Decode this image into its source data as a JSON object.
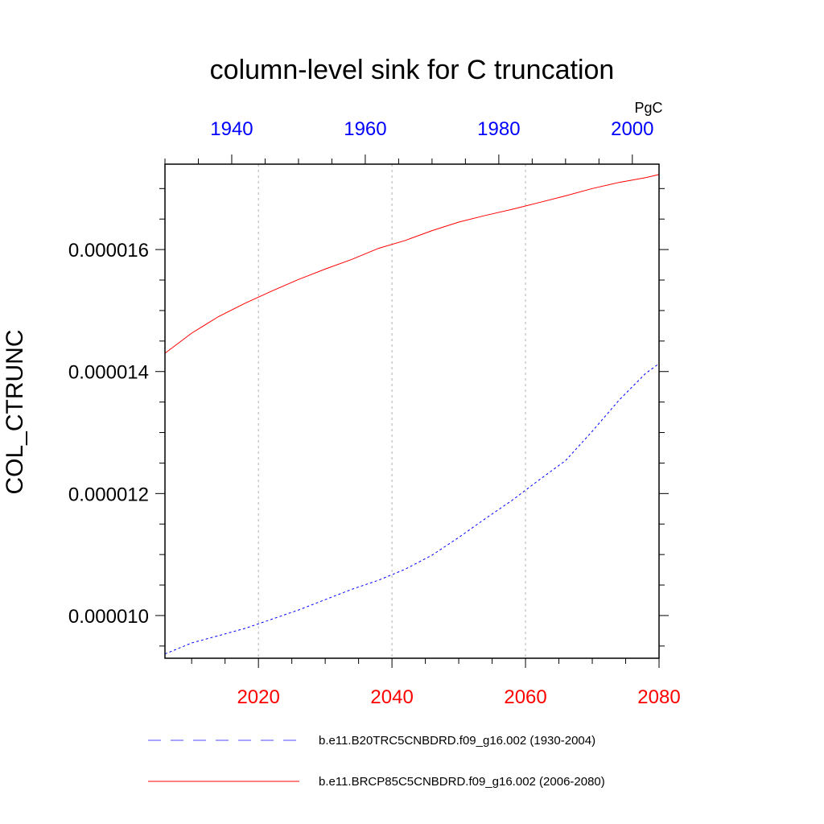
{
  "chart_data": {
    "type": "line",
    "title": "column-level sink for C truncation",
    "ylabel": "COL_CTRUNC",
    "units": "PgC",
    "ylim": [
      9.3e-06,
      1.74e-05
    ],
    "yticks": [
      "0.000010",
      "0.000012",
      "0.000014",
      "0.000016"
    ],
    "ytick_values": [
      1e-05,
      1.2e-05,
      1.4e-05,
      1.6e-05
    ],
    "bottom_axis": {
      "range": [
        2006,
        2080
      ],
      "ticks": [
        "2020",
        "2040",
        "2060",
        "2080"
      ],
      "color": "#ff0000"
    },
    "top_axis": {
      "range": [
        1930,
        2004
      ],
      "ticks": [
        "1940",
        "1960",
        "1980",
        "2000"
      ],
      "color": "#0000ff"
    },
    "grid": "vertical dotted at bottom major ticks",
    "legend_position": "bottom",
    "series": [
      {
        "name": "b.e11.B20TRC5CNBDRD.f09_g16.002 (1930-2004)",
        "axis": "top",
        "color": "#0000ff",
        "style": "dashed",
        "x": [
          1930,
          1934,
          1938,
          1942,
          1946,
          1950,
          1954,
          1958,
          1962,
          1966,
          1970,
          1974,
          1978,
          1982,
          1986,
          1990,
          1994,
          1998,
          2002,
          2004
        ],
        "y": [
          9.37e-06,
          9.55e-06,
          9.67e-06,
          9.79e-06,
          9.94e-06,
          1.009e-05,
          1.026e-05,
          1.043e-05,
          1.058e-05,
          1.076e-05,
          1.099e-05,
          1.128e-05,
          1.159e-05,
          1.189e-05,
          1.222e-05,
          1.254e-05,
          1.302e-05,
          1.353e-05,
          1.397e-05,
          1.413e-05
        ]
      },
      {
        "name": "b.e11.BRCP85C5CNBDRD.f09_g16.002 (2006-2080)",
        "axis": "bottom",
        "color": "#ff0000",
        "style": "solid",
        "x": [
          2006,
          2010,
          2014,
          2018,
          2022,
          2026,
          2030,
          2034,
          2038,
          2042,
          2046,
          2050,
          2054,
          2058,
          2062,
          2066,
          2070,
          2074,
          2078,
          2080
        ],
        "y": [
          1.43e-05,
          1.463e-05,
          1.49e-05,
          1.512e-05,
          1.532e-05,
          1.551e-05,
          1.568e-05,
          1.584e-05,
          1.602e-05,
          1.615e-05,
          1.631e-05,
          1.645e-05,
          1.656e-05,
          1.666e-05,
          1.677e-05,
          1.688e-05,
          1.7e-05,
          1.71e-05,
          1.718e-05,
          1.723e-05
        ]
      }
    ]
  }
}
